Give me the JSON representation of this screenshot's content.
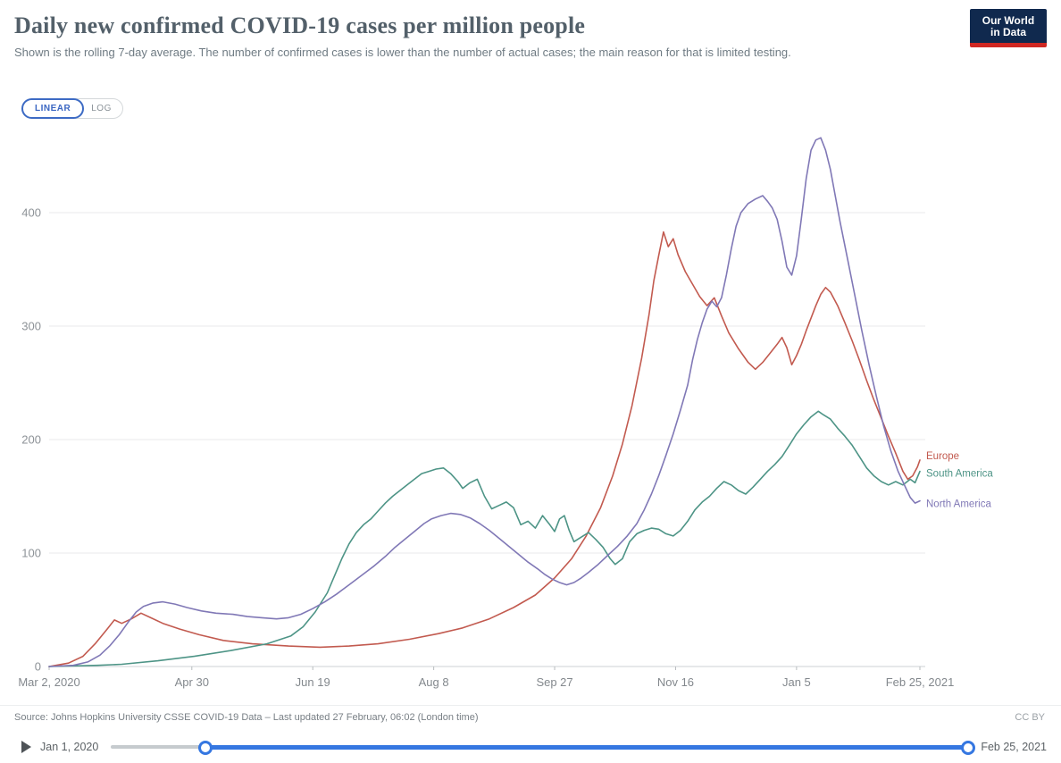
{
  "header": {
    "logo": {
      "line1": "Our World",
      "line2": "in Data"
    }
  },
  "controls": {
    "linear_label": "LINEAR",
    "log_label": "LOG"
  },
  "chart_data": {
    "type": "line",
    "title": "Daily new confirmed COVID-19 cases per million people",
    "subtitle": "Shown is the rolling 7-day average. The number of confirmed cases is lower than the number of actual cases; the main reason for that is limited testing.",
    "grid": true,
    "legend_position": "right-of-line-ends",
    "x_axis": {
      "range_days": [
        0,
        360
      ],
      "start_date": "Mar 2, 2020",
      "end_date": "Feb 25, 2021",
      "ticks": [
        {
          "label": "Mar 2, 2020",
          "day": 0
        },
        {
          "label": "Apr 30",
          "day": 59
        },
        {
          "label": "Jun 19",
          "day": 109
        },
        {
          "label": "Aug 8",
          "day": 159
        },
        {
          "label": "Sep 27",
          "day": 209
        },
        {
          "label": "Nov 16",
          "day": 259
        },
        {
          "label": "Jan 5",
          "day": 309
        },
        {
          "label": "Feb 25, 2021",
          "day": 360
        }
      ]
    },
    "y_axis": {
      "ticks": [
        0,
        100,
        200,
        300,
        400
      ],
      "range": [
        0,
        470
      ]
    },
    "series": [
      {
        "name": "Europe",
        "color": "#c25a4f",
        "label_dy": -4,
        "points": [
          [
            0,
            0
          ],
          [
            8,
            3
          ],
          [
            14,
            9
          ],
          [
            19,
            20
          ],
          [
            24,
            33
          ],
          [
            27,
            41
          ],
          [
            30,
            38
          ],
          [
            34,
            42
          ],
          [
            38,
            47
          ],
          [
            42,
            43
          ],
          [
            47,
            38
          ],
          [
            54,
            33
          ],
          [
            62,
            28
          ],
          [
            72,
            23
          ],
          [
            84,
            20
          ],
          [
            99,
            18
          ],
          [
            112,
            17
          ],
          [
            124,
            18
          ],
          [
            136,
            20
          ],
          [
            149,
            24
          ],
          [
            161,
            29
          ],
          [
            171,
            34
          ],
          [
            182,
            42
          ],
          [
            192,
            52
          ],
          [
            201,
            63
          ],
          [
            209,
            78
          ],
          [
            216,
            95
          ],
          [
            222,
            115
          ],
          [
            228,
            140
          ],
          [
            233,
            168
          ],
          [
            237,
            196
          ],
          [
            241,
            230
          ],
          [
            245,
            272
          ],
          [
            248,
            310
          ],
          [
            250,
            340
          ],
          [
            252,
            362
          ],
          [
            254,
            383
          ],
          [
            256,
            370
          ],
          [
            258,
            377
          ],
          [
            260,
            363
          ],
          [
            263,
            348
          ],
          [
            266,
            337
          ],
          [
            269,
            326
          ],
          [
            272,
            318
          ],
          [
            275,
            325
          ],
          [
            278,
            309
          ],
          [
            281,
            294
          ],
          [
            285,
            280
          ],
          [
            289,
            268
          ],
          [
            292,
            262
          ],
          [
            295,
            268
          ],
          [
            298,
            276
          ],
          [
            301,
            284
          ],
          [
            303,
            290
          ],
          [
            305,
            281
          ],
          [
            307,
            266
          ],
          [
            309,
            274
          ],
          [
            311,
            284
          ],
          [
            313,
            296
          ],
          [
            315,
            307
          ],
          [
            317,
            318
          ],
          [
            319,
            328
          ],
          [
            321,
            334
          ],
          [
            323,
            330
          ],
          [
            326,
            318
          ],
          [
            329,
            303
          ],
          [
            332,
            287
          ],
          [
            335,
            270
          ],
          [
            338,
            252
          ],
          [
            341,
            235
          ],
          [
            344,
            219
          ],
          [
            347,
            203
          ],
          [
            350,
            188
          ],
          [
            353,
            172
          ],
          [
            355,
            165
          ],
          [
            357,
            168
          ],
          [
            359,
            176
          ],
          [
            360,
            182
          ]
        ]
      },
      {
        "name": "South America",
        "color": "#4d9486",
        "label_dy": 3,
        "points": [
          [
            0,
            0
          ],
          [
            20,
            1
          ],
          [
            30,
            2
          ],
          [
            45,
            5
          ],
          [
            60,
            9
          ],
          [
            75,
            14
          ],
          [
            90,
            20
          ],
          [
            100,
            27
          ],
          [
            105,
            35
          ],
          [
            110,
            48
          ],
          [
            115,
            65
          ],
          [
            118,
            80
          ],
          [
            121,
            95
          ],
          [
            124,
            108
          ],
          [
            127,
            118
          ],
          [
            130,
            125
          ],
          [
            133,
            130
          ],
          [
            136,
            137
          ],
          [
            139,
            144
          ],
          [
            142,
            150
          ],
          [
            145,
            155
          ],
          [
            148,
            160
          ],
          [
            151,
            165
          ],
          [
            154,
            170
          ],
          [
            157,
            172
          ],
          [
            160,
            174
          ],
          [
            163,
            175
          ],
          [
            166,
            170
          ],
          [
            169,
            163
          ],
          [
            171,
            157
          ],
          [
            174,
            162
          ],
          [
            177,
            165
          ],
          [
            180,
            150
          ],
          [
            183,
            139
          ],
          [
            186,
            142
          ],
          [
            189,
            145
          ],
          [
            192,
            140
          ],
          [
            195,
            125
          ],
          [
            198,
            128
          ],
          [
            201,
            122
          ],
          [
            204,
            133
          ],
          [
            207,
            125
          ],
          [
            209,
            119
          ],
          [
            211,
            130
          ],
          [
            213,
            133
          ],
          [
            215,
            120
          ],
          [
            217,
            110
          ],
          [
            220,
            114
          ],
          [
            223,
            118
          ],
          [
            226,
            112
          ],
          [
            229,
            105
          ],
          [
            232,
            95
          ],
          [
            234,
            90
          ],
          [
            237,
            95
          ],
          [
            240,
            110
          ],
          [
            243,
            117
          ],
          [
            246,
            120
          ],
          [
            249,
            122
          ],
          [
            252,
            121
          ],
          [
            255,
            117
          ],
          [
            258,
            115
          ],
          [
            261,
            120
          ],
          [
            264,
            128
          ],
          [
            267,
            138
          ],
          [
            270,
            145
          ],
          [
            273,
            150
          ],
          [
            276,
            157
          ],
          [
            279,
            163
          ],
          [
            282,
            160
          ],
          [
            285,
            155
          ],
          [
            288,
            152
          ],
          [
            291,
            158
          ],
          [
            294,
            165
          ],
          [
            297,
            172
          ],
          [
            300,
            178
          ],
          [
            303,
            185
          ],
          [
            306,
            195
          ],
          [
            309,
            205
          ],
          [
            312,
            213
          ],
          [
            315,
            220
          ],
          [
            318,
            225
          ],
          [
            320,
            222
          ],
          [
            323,
            218
          ],
          [
            326,
            210
          ],
          [
            329,
            203
          ],
          [
            332,
            195
          ],
          [
            335,
            185
          ],
          [
            338,
            175
          ],
          [
            341,
            168
          ],
          [
            344,
            163
          ],
          [
            347,
            160
          ],
          [
            350,
            163
          ],
          [
            353,
            160
          ],
          [
            356,
            165
          ],
          [
            358,
            162
          ],
          [
            360,
            172
          ]
        ]
      },
      {
        "name": "North America",
        "color": "#8078b6",
        "label_dy": 4,
        "points": [
          [
            0,
            0
          ],
          [
            10,
            1
          ],
          [
            16,
            4
          ],
          [
            21,
            10
          ],
          [
            25,
            18
          ],
          [
            29,
            28
          ],
          [
            33,
            40
          ],
          [
            36,
            48
          ],
          [
            39,
            53
          ],
          [
            43,
            56
          ],
          [
            47,
            57
          ],
          [
            52,
            55
          ],
          [
            57,
            52
          ],
          [
            63,
            49
          ],
          [
            69,
            47
          ],
          [
            76,
            46
          ],
          [
            82,
            44
          ],
          [
            88,
            43
          ],
          [
            94,
            42
          ],
          [
            99,
            43
          ],
          [
            104,
            46
          ],
          [
            109,
            51
          ],
          [
            114,
            57
          ],
          [
            119,
            64
          ],
          [
            124,
            72
          ],
          [
            129,
            80
          ],
          [
            134,
            88
          ],
          [
            139,
            97
          ],
          [
            143,
            105
          ],
          [
            147,
            112
          ],
          [
            151,
            119
          ],
          [
            155,
            126
          ],
          [
            158,
            130
          ],
          [
            162,
            133
          ],
          [
            166,
            135
          ],
          [
            170,
            134
          ],
          [
            174,
            131
          ],
          [
            178,
            126
          ],
          [
            182,
            120
          ],
          [
            186,
            113
          ],
          [
            190,
            106
          ],
          [
            194,
            99
          ],
          [
            198,
            92
          ],
          [
            202,
            86
          ],
          [
            205,
            81
          ],
          [
            208,
            77
          ],
          [
            211,
            74
          ],
          [
            214,
            72
          ],
          [
            217,
            74
          ],
          [
            220,
            78
          ],
          [
            223,
            83
          ],
          [
            227,
            90
          ],
          [
            231,
            98
          ],
          [
            235,
            106
          ],
          [
            239,
            115
          ],
          [
            243,
            126
          ],
          [
            246,
            138
          ],
          [
            249,
            152
          ],
          [
            252,
            168
          ],
          [
            255,
            186
          ],
          [
            258,
            205
          ],
          [
            261,
            226
          ],
          [
            264,
            248
          ],
          [
            266,
            270
          ],
          [
            268,
            288
          ],
          [
            270,
            303
          ],
          [
            272,
            315
          ],
          [
            274,
            322
          ],
          [
            276,
            317
          ],
          [
            278,
            325
          ],
          [
            280,
            345
          ],
          [
            282,
            368
          ],
          [
            284,
            388
          ],
          [
            286,
            400
          ],
          [
            289,
            408
          ],
          [
            292,
            412
          ],
          [
            295,
            415
          ],
          [
            297,
            410
          ],
          [
            299,
            404
          ],
          [
            301,
            394
          ],
          [
            303,
            375
          ],
          [
            305,
            352
          ],
          [
            307,
            345
          ],
          [
            309,
            362
          ],
          [
            311,
            395
          ],
          [
            313,
            430
          ],
          [
            315,
            455
          ],
          [
            317,
            464
          ],
          [
            319,
            466
          ],
          [
            321,
            455
          ],
          [
            323,
            438
          ],
          [
            325,
            415
          ],
          [
            327,
            392
          ],
          [
            330,
            360
          ],
          [
            333,
            328
          ],
          [
            336,
            296
          ],
          [
            339,
            266
          ],
          [
            342,
            238
          ],
          [
            345,
            212
          ],
          [
            348,
            190
          ],
          [
            351,
            172
          ],
          [
            354,
            158
          ],
          [
            356,
            149
          ],
          [
            358,
            144
          ],
          [
            360,
            146
          ]
        ]
      }
    ]
  },
  "footer": {
    "source": "Source: Johns Hopkins University CSSE COVID-19 Data – Last updated 27 February, 06:02 (London time)",
    "license": "CC BY"
  },
  "timeline": {
    "start_label": "Jan 1, 2020",
    "end_label": "Feb 25, 2021",
    "selected_start_pct": 11,
    "selected_end_pct": 100,
    "active_color": "#3577e1",
    "inactive_color": "#c6cbce"
  }
}
